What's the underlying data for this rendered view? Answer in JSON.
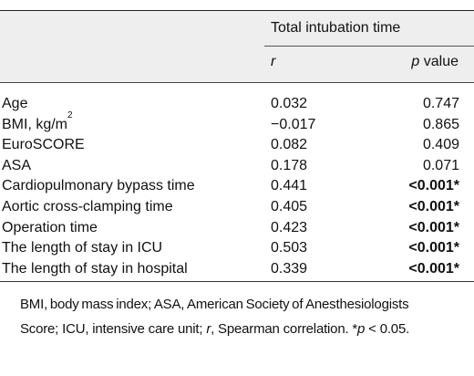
{
  "table": {
    "group_header": "Total intubation time",
    "col_r": "r",
    "col_p_italic": "p",
    "col_p_rest": " value",
    "rows": [
      {
        "variable": "Age",
        "sup": "",
        "r": "0.032",
        "p": "0.747",
        "significant": false
      },
      {
        "variable": "BMI, kg/m",
        "sup": "2",
        "r": "−0.017",
        "p": "0.865",
        "significant": false
      },
      {
        "variable": "EuroSCORE",
        "sup": "",
        "r": "0.082",
        "p": "0.409",
        "significant": false
      },
      {
        "variable": "ASA",
        "sup": "",
        "r": "0.178",
        "p": "0.071",
        "significant": false
      },
      {
        "variable": "Cardiopulmonary bypass time",
        "sup": "",
        "r": "0.441",
        "p": "<0.001*",
        "significant": true
      },
      {
        "variable": "Aortic cross-clamping time",
        "sup": "",
        "r": "0.405",
        "p": "<0.001*",
        "significant": true
      },
      {
        "variable": "Operation time",
        "sup": "",
        "r": "0.423",
        "p": "<0.001*",
        "significant": true
      },
      {
        "variable": "The length of stay in ICU",
        "sup": "",
        "r": "0.503",
        "p": "<0.001*",
        "significant": true
      },
      {
        "variable": "The length of stay in hospital",
        "sup": "",
        "r": "0.339",
        "p": "<0.001*",
        "significant": true
      }
    ]
  },
  "footnote": {
    "line1": "BMI, body mass index; ASA, American Society of Anesthesiologists",
    "line2_a": "Score; ICU, intensive care unit; ",
    "line2_r": "r",
    "line2_b": ", Spearman correlation. *",
    "line2_p": "p",
    "line2_c": " < 0.05."
  }
}
